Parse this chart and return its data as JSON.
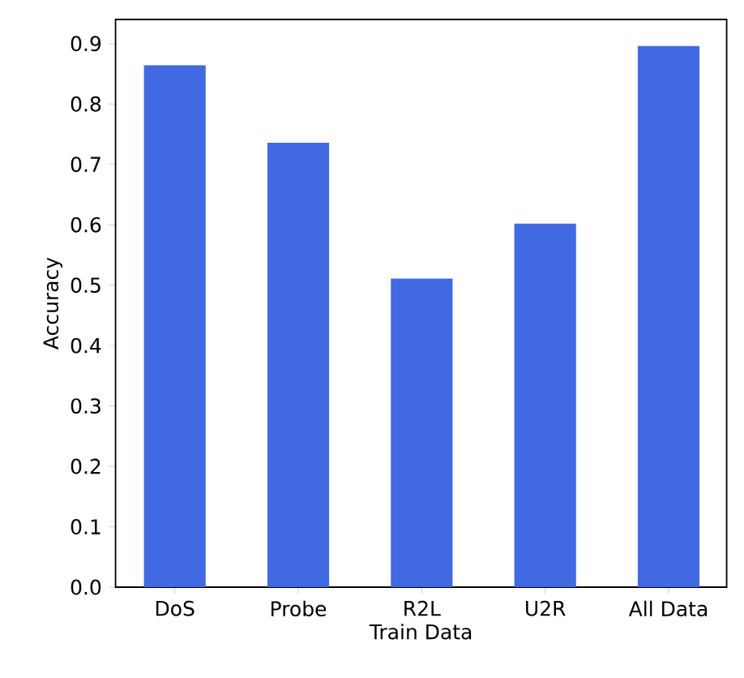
{
  "chart_data": {
    "type": "bar",
    "xlabel": "Train Data",
    "ylabel": "Accuracy",
    "categories": [
      "DoS",
      "Probe",
      "R2L",
      "U2R",
      "All Data"
    ],
    "values": [
      0.864,
      0.736,
      0.511,
      0.602,
      0.896
    ],
    "color": "#4169e1",
    "ylim": [
      0,
      0.94
    ],
    "yticks": [
      {
        "value": 0,
        "label": "0.0"
      },
      0.1,
      0.2,
      0.3,
      0.4,
      0.5,
      0.6,
      0.7,
      0.8,
      0.9
    ]
  }
}
